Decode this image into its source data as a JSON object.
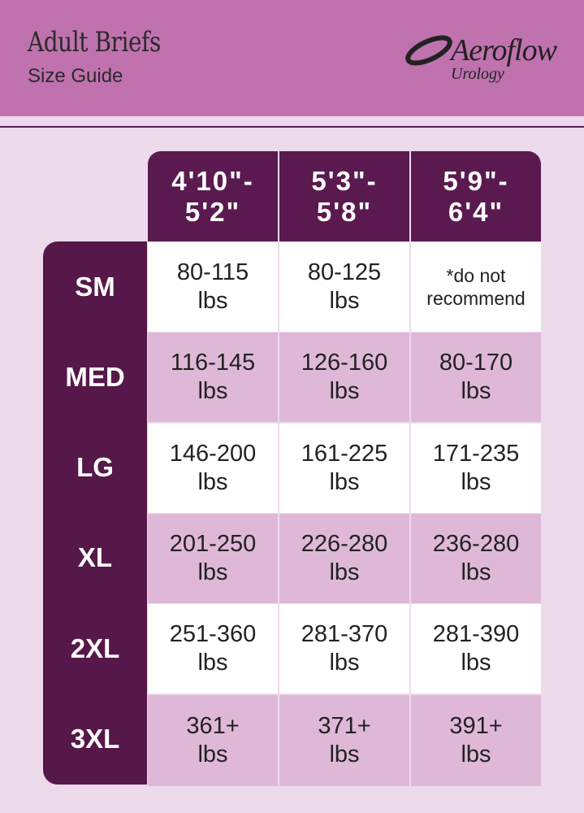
{
  "header": {
    "title": "Adult Briefs",
    "subtitle": "Size Guide",
    "logo_name": "Aeroflow",
    "logo_sub": "Urology"
  },
  "colors": {
    "header": "#bf72ae",
    "dark": "#5a1a50",
    "alt_row": "#dfb8d8",
    "background": "#eddaeb"
  },
  "table": {
    "columns": [
      "4'10\"-\n5'2\"",
      "5'3\"-\n5'8\"",
      "5'9\"-\n6'4\""
    ],
    "rows": [
      {
        "size": "SM",
        "values": [
          "80-115\nlbs",
          "80-125\nlbs",
          "*do not\nrecommend"
        ]
      },
      {
        "size": "MED",
        "values": [
          "116-145\nlbs",
          "126-160\nlbs",
          "80-170\nlbs"
        ]
      },
      {
        "size": "LG",
        "values": [
          "146-200\nlbs",
          "161-225\nlbs",
          "171-235\nlbs"
        ]
      },
      {
        "size": "XL",
        "values": [
          "201-250\nlbs",
          "226-280\nlbs",
          "236-280\nlbs"
        ]
      },
      {
        "size": "2XL",
        "values": [
          "251-360\nlbs",
          "281-370\nlbs",
          "281-390\nlbs"
        ]
      },
      {
        "size": "3XL",
        "values": [
          "361+\nlbs",
          "371+\nlbs",
          "391+\nlbs"
        ]
      }
    ]
  }
}
